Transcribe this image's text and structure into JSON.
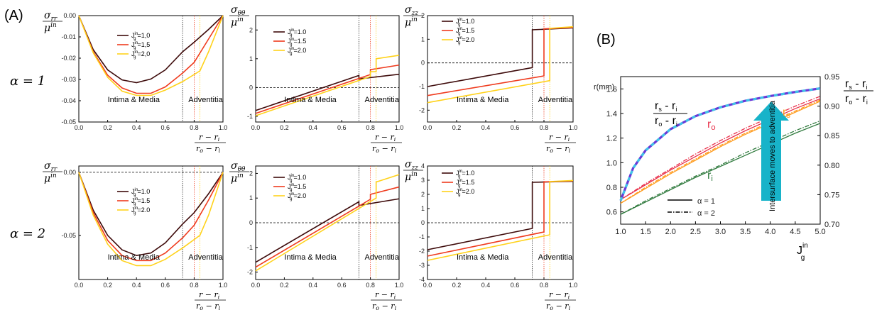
{
  "panel_labels": {
    "a": "(A)",
    "b": "(B)"
  },
  "row_labels": [
    "α = 1",
    "α = 2"
  ],
  "region_labels": {
    "intima": "Intima & Media",
    "adventitia": "Adventitia"
  },
  "x_label": {
    "num": "r − r",
    "num_sub": "i",
    "den": "r",
    "den_sub1": "o",
    "den_mid": " − r",
    "den_sub2": "i"
  },
  "colors": {
    "J1": "#3d0a0a",
    "J15": "#ef3b1e",
    "J2": "#ffd21a",
    "ri": "#2f7a3d",
    "ro": "#e8304a",
    "rs": "#ff9a1a",
    "ratio_a": "#6a39d6",
    "ratio_b": "#3fc4e8",
    "arrow": "#18b3c9"
  },
  "legend_labels": [
    "J_g^in=1.0",
    "J_g^in=1.5",
    "J_g^in=2.0"
  ],
  "chart_data": [
    {
      "id": "rr1",
      "type": "line",
      "ylabel": "σrr / μin",
      "xlim": [
        0,
        1
      ],
      "ylim": [
        -0.05,
        0.0
      ],
      "yticks": [
        "0.00",
        "-0.01",
        "-0.02",
        "-0.03",
        "-0.04",
        "-0.05"
      ],
      "ytick_vals": [
        0,
        -0.01,
        -0.02,
        -0.03,
        -0.04,
        -0.05
      ],
      "xticks": [
        "0.0",
        "0.2",
        "0.4",
        "0.6",
        "0.8",
        "1.0"
      ],
      "legend": [
        "J_g^in=1,0",
        "J_g^in=1,5",
        "J_g^in=2,0"
      ],
      "interfaces": [
        0.72,
        0.8,
        0.84
      ],
      "series": [
        {
          "name": "J_g^in=1,0",
          "x": [
            0,
            0.1,
            0.2,
            0.3,
            0.4,
            0.5,
            0.6,
            0.72,
            0.8,
            0.9,
            1.0
          ],
          "y": [
            0,
            -0.016,
            -0.0255,
            -0.0302,
            -0.0315,
            -0.0298,
            -0.0255,
            -0.017,
            -0.0125,
            -0.0065,
            0
          ]
        },
        {
          "name": "J_g^in=1,5",
          "x": [
            0,
            0.1,
            0.2,
            0.3,
            0.4,
            0.5,
            0.6,
            0.72,
            0.8,
            0.9,
            1.0
          ],
          "y": [
            0,
            -0.017,
            -0.028,
            -0.034,
            -0.0365,
            -0.0365,
            -0.0335,
            -0.027,
            -0.022,
            -0.011,
            0
          ]
        },
        {
          "name": "J_g^in=2,0",
          "x": [
            0,
            0.1,
            0.2,
            0.3,
            0.4,
            0.5,
            0.6,
            0.72,
            0.84,
            0.9,
            1.0
          ],
          "y": [
            0,
            -0.0175,
            -0.029,
            -0.0355,
            -0.0375,
            -0.0375,
            -0.035,
            -0.031,
            -0.026,
            -0.017,
            0
          ]
        }
      ]
    },
    {
      "id": "tt1",
      "type": "line",
      "ylabel": "σθθ / μin",
      "xlim": [
        0,
        1
      ],
      "ylim": [
        -1.2,
        2.5
      ],
      "yticks": [
        "2",
        "1",
        "0",
        "-1"
      ],
      "ytick_vals": [
        2,
        1,
        0,
        -1
      ],
      "xticks": [
        "0.0",
        "0.2",
        "0.4",
        "0.6",
        "0.8",
        "1.0"
      ],
      "legend": [
        "J_g^in=1.0",
        "J_g^in=1.5",
        "J_g^in=2.0"
      ],
      "interfaces": [
        0.72,
        0.8,
        0.84
      ],
      "series": [
        {
          "name": "J_g^in=1.0",
          "x": [
            0,
            0.72,
            0.72,
            1.0
          ],
          "y": [
            -0.8,
            0.42,
            0.3,
            0.46
          ]
        },
        {
          "name": "J_g^in=1.5",
          "x": [
            0,
            0.8,
            0.8,
            1.0
          ],
          "y": [
            -0.9,
            0.45,
            0.62,
            0.78
          ]
        },
        {
          "name": "J_g^in=2.0",
          "x": [
            0,
            0.8,
            0.8,
            0.84,
            0.84,
            1.0
          ],
          "y": [
            -0.98,
            0.38,
            0.55,
            0.55,
            1.0,
            1.12
          ]
        }
      ]
    },
    {
      "id": "zz1",
      "type": "line",
      "ylabel": "σzz / μin",
      "xlim": [
        0,
        1
      ],
      "ylim": [
        -2.5,
        2.0
      ],
      "yticks": [
        "2",
        "1",
        "0",
        "-1",
        "-2"
      ],
      "ytick_vals": [
        2,
        1,
        0,
        -1,
        -2
      ],
      "xticks": [
        "0.0",
        "0.2",
        "0.4",
        "0.6",
        "0.8",
        "1.0"
      ],
      "legend": [
        "J_g^in=1.0",
        "J_g^in=1.5",
        "J_g^in=2.0"
      ],
      "interfaces": [
        0.72,
        0.8,
        0.84
      ],
      "series": [
        {
          "name": "J_g^in=1.0",
          "x": [
            0,
            0.72,
            0.72,
            1.0
          ],
          "y": [
            -1.0,
            -0.2,
            1.4,
            1.48
          ]
        },
        {
          "name": "J_g^in=1.5",
          "x": [
            0,
            0.8,
            0.8,
            1.0
          ],
          "y": [
            -1.38,
            -0.55,
            1.44,
            1.5
          ]
        },
        {
          "name": "J_g^in=2.0",
          "x": [
            0,
            0.84,
            0.84,
            1.0
          ],
          "y": [
            -1.68,
            -0.75,
            1.46,
            1.53
          ]
        }
      ]
    },
    {
      "id": "rr2",
      "type": "line",
      "ylabel": "σrr / μin",
      "xlim": [
        0,
        1
      ],
      "ylim": [
        -0.085,
        0.005
      ],
      "yticks": [
        "0.00",
        "-0.05"
      ],
      "ytick_vals": [
        0,
        -0.05
      ],
      "xticks": [
        "0.0",
        "0.2",
        "0.4",
        "0.6",
        "0.8",
        "1.0"
      ],
      "legend": [
        "J_g^in=1.0",
        "J_g^in=1.5",
        "J_g^in=2.0"
      ],
      "interfaces": [
        0.72,
        0.8,
        0.84
      ],
      "series": [
        {
          "name": "J_g^in=1.0",
          "x": [
            0,
            0.1,
            0.2,
            0.3,
            0.4,
            0.5,
            0.6,
            0.72,
            0.8,
            0.9,
            1.0
          ],
          "y": [
            0,
            -0.03,
            -0.05,
            -0.0615,
            -0.066,
            -0.064,
            -0.056,
            -0.041,
            -0.032,
            -0.017,
            0
          ]
        },
        {
          "name": "J_g^in=1.5",
          "x": [
            0,
            0.1,
            0.2,
            0.3,
            0.4,
            0.5,
            0.6,
            0.72,
            0.8,
            0.9,
            1.0
          ],
          "y": [
            0,
            -0.032,
            -0.054,
            -0.066,
            -0.07,
            -0.07,
            -0.064,
            -0.052,
            -0.042,
            -0.022,
            0
          ]
        },
        {
          "name": "J_g^in=2.0",
          "x": [
            0,
            0.1,
            0.2,
            0.3,
            0.4,
            0.5,
            0.6,
            0.72,
            0.84,
            0.9,
            1.0
          ],
          "y": [
            0,
            -0.034,
            -0.057,
            -0.07,
            -0.074,
            -0.074,
            -0.069,
            -0.06,
            -0.05,
            -0.034,
            0
          ]
        }
      ]
    },
    {
      "id": "tt2",
      "type": "line",
      "ylabel": "σθθ / μin",
      "xlim": [
        0,
        1
      ],
      "ylim": [
        -2.3,
        2.3
      ],
      "yticks": [
        "2",
        "1",
        "0",
        "-1",
        "-2"
      ],
      "ytick_vals": [
        2,
        1,
        0,
        -1,
        -2
      ],
      "xticks": [
        "0.0",
        "0.2",
        "0.4",
        "0.6",
        "0.8",
        "1.0"
      ],
      "legend": [
        "J_g^in=1.0",
        "J_g^in=1.5",
        "J_g^in=2.0"
      ],
      "interfaces": [
        0.72,
        0.8,
        0.84
      ],
      "series": [
        {
          "name": "J_g^in=1.0",
          "x": [
            0,
            0.72,
            0.72,
            1.0
          ],
          "y": [
            -1.6,
            0.85,
            0.7,
            0.97
          ]
        },
        {
          "name": "J_g^in=1.5",
          "x": [
            0,
            0.8,
            0.8,
            1.0
          ],
          "y": [
            -1.8,
            0.95,
            1.15,
            1.45
          ]
        },
        {
          "name": "J_g^in=2.0",
          "x": [
            0,
            0.84,
            0.84,
            1.0
          ],
          "y": [
            -1.95,
            1.0,
            1.65,
            1.95
          ]
        }
      ]
    },
    {
      "id": "zz2",
      "type": "line",
      "ylabel": "σzz / μin",
      "xlim": [
        0,
        1
      ],
      "ylim": [
        -4.0,
        4.0
      ],
      "yticks": [
        "4",
        "3",
        "2",
        "1",
        "0",
        "-1",
        "-2",
        "-3",
        "-4"
      ],
      "ytick_vals": [
        4,
        3,
        2,
        1,
        0,
        -1,
        -2,
        -3,
        -4
      ],
      "xticks": [
        "0.0",
        "0.2",
        "0.4",
        "0.6",
        "0.8",
        "1.0"
      ],
      "legend": [
        "J_g^in=1.0",
        "J_g^in=1.5",
        "J_g^in=2.0"
      ],
      "interfaces": [
        0.72,
        0.8,
        0.84
      ],
      "series": [
        {
          "name": "J_g^in=1.0",
          "x": [
            0,
            0.72,
            0.72,
            1.0
          ],
          "y": [
            -1.9,
            -0.4,
            2.85,
            2.92
          ]
        },
        {
          "name": "J_g^in=1.5",
          "x": [
            0,
            0.8,
            0.8,
            1.0
          ],
          "y": [
            -2.35,
            -0.65,
            2.88,
            2.95
          ]
        },
        {
          "name": "J_g^in=2.0",
          "x": [
            0,
            0.84,
            0.84,
            1.0
          ],
          "y": [
            -2.65,
            -0.85,
            2.9,
            2.98
          ]
        }
      ]
    },
    {
      "id": "B",
      "type": "line",
      "xlabel": "J_g^in",
      "ylabel_left": "r(mm)",
      "ylabel_right": "(r_s − r_i)/(r_o − r_i)",
      "xlim": [
        1.0,
        5.0
      ],
      "ylim_left": [
        0.5,
        1.7
      ],
      "ylim_right": [
        0.7,
        0.95
      ],
      "xticks": [
        "1.0",
        "1.5",
        "2.0",
        "2.5",
        "3.0",
        "3.5",
        "4.0",
        "4.5",
        "5.0"
      ],
      "yticks_left": [
        "0.6",
        "0.8",
        "1.0",
        "1.2",
        "1.4",
        "1.6"
      ],
      "yticks_left_vals": [
        0.6,
        0.8,
        1.0,
        1.2,
        1.4,
        1.6
      ],
      "yticks_right": [
        "0.70",
        "0.75",
        "0.80",
        "0.85",
        "0.90",
        "0.95"
      ],
      "yticks_right_vals": [
        0.7,
        0.75,
        0.8,
        0.85,
        0.9,
        0.95
      ],
      "curve_labels": {
        "ro": "r",
        "ro_sub": "o",
        "ri": "r",
        "ri_sub": "i",
        "rs": "r",
        "rs_sub": "s",
        "ratio_num": "r",
        "ratio_num_sub": "s",
        "ratio_num_mid": " - r",
        "ratio_num_sub2": "i",
        "ratio_den": "r",
        "ratio_den_sub": "o",
        "ratio_den_mid": " - r",
        "ratio_den_sub2": "i"
      },
      "annotation": "Intersurface moves to adventitia",
      "legend": [
        "α = 1",
        "α = 2"
      ],
      "series": [
        {
          "name": "r_o α=1",
          "x": [
            1,
            1.5,
            2,
            2.5,
            3,
            3.5,
            4,
            4.5,
            5
          ],
          "y": [
            0.7,
            0.82,
            0.94,
            1.05,
            1.16,
            1.26,
            1.35,
            1.44,
            1.52
          ]
        },
        {
          "name": "r_o α=2",
          "x": [
            1,
            1.5,
            2,
            2.5,
            3,
            3.5,
            4,
            4.5,
            5
          ],
          "y": [
            0.7,
            0.83,
            0.95,
            1.07,
            1.18,
            1.28,
            1.37,
            1.46,
            1.54
          ]
        },
        {
          "name": "r_s α=1",
          "x": [
            1,
            1.5,
            2,
            2.5,
            3,
            3.5,
            4,
            4.5,
            5
          ],
          "y": [
            0.67,
            0.79,
            0.91,
            1.02,
            1.13,
            1.23,
            1.32,
            1.41,
            1.5
          ]
        },
        {
          "name": "r_s α=2",
          "x": [
            1,
            1.5,
            2,
            2.5,
            3,
            3.5,
            4,
            4.5,
            5
          ],
          "y": [
            0.67,
            0.8,
            0.92,
            1.03,
            1.14,
            1.24,
            1.33,
            1.42,
            1.51
          ]
        },
        {
          "name": "r_i α=1",
          "x": [
            1,
            1.5,
            2,
            2.5,
            3,
            3.5,
            4,
            4.5,
            5
          ],
          "y": [
            0.58,
            0.68,
            0.78,
            0.88,
            0.97,
            1.06,
            1.15,
            1.24,
            1.32
          ]
        },
        {
          "name": "r_i α=2",
          "x": [
            1,
            1.5,
            2,
            2.5,
            3,
            3.5,
            4,
            4.5,
            5
          ],
          "y": [
            0.58,
            0.69,
            0.79,
            0.89,
            0.98,
            1.08,
            1.17,
            1.26,
            1.34
          ]
        },
        {
          "name": "ratio",
          "axis": "right",
          "x": [
            1,
            1.25,
            1.5,
            2,
            2.5,
            3,
            3.5,
            4,
            4.5,
            5
          ],
          "y": [
            0.74,
            0.795,
            0.825,
            0.861,
            0.883,
            0.898,
            0.909,
            0.917,
            0.924,
            0.93
          ]
        }
      ]
    }
  ]
}
